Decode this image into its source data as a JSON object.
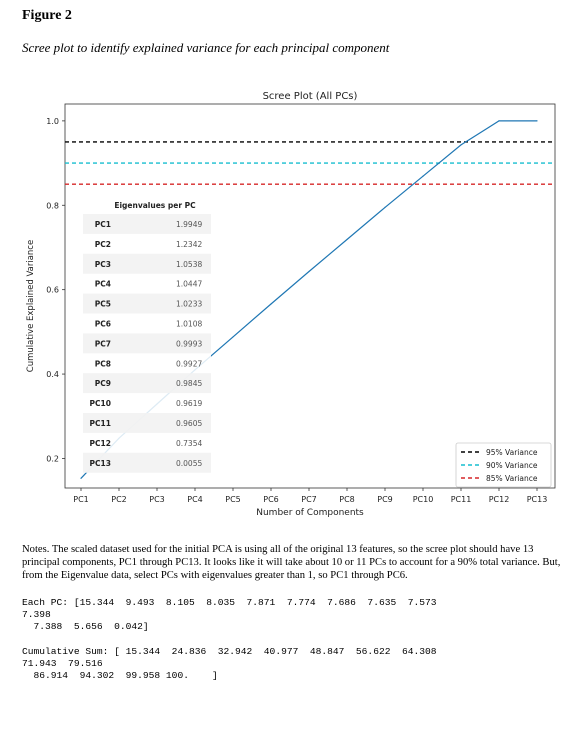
{
  "figure": {
    "label": "Figure 2",
    "caption": "Scree plot to identify explained variance for each principal component"
  },
  "chart_data": {
    "type": "line",
    "title": "Scree Plot (All PCs)",
    "xlabel": "Number of Components",
    "ylabel": "Cumulative Explained Variance",
    "categories": [
      "PC1",
      "PC2",
      "PC3",
      "PC4",
      "PC5",
      "PC6",
      "PC7",
      "PC8",
      "PC9",
      "PC10",
      "PC11",
      "PC12",
      "PC13"
    ],
    "y_ticks": [
      "0.2",
      "0.4",
      "0.6",
      "0.8",
      "1.0"
    ],
    "ylim": [
      0.13,
      1.04
    ],
    "series": [
      {
        "values": [
          0.153,
          0.248,
          0.329,
          0.41,
          0.488,
          0.566,
          0.643,
          0.719,
          0.795,
          0.869,
          0.943,
          1.0,
          1.0
        ],
        "color": "#1f77b4"
      }
    ],
    "hlines": [
      {
        "y": 0.95,
        "label": "95% Variance",
        "color": "#000000"
      },
      {
        "y": 0.9,
        "label": "90% Variance",
        "color": "#17becf"
      },
      {
        "y": 0.85,
        "label": "85% Variance",
        "color": "#d62728"
      }
    ],
    "legend_position": "bottom-right",
    "grid": false,
    "inset_table": {
      "header": "Eigenvalues per PC",
      "rows": [
        [
          "PC1",
          "1.9949"
        ],
        [
          "PC2",
          "1.2342"
        ],
        [
          "PC3",
          "1.0538"
        ],
        [
          "PC4",
          "1.0447"
        ],
        [
          "PC5",
          "1.0233"
        ],
        [
          "PC6",
          "1.0108"
        ],
        [
          "PC7",
          "0.9993"
        ],
        [
          "PC8",
          "0.9927"
        ],
        [
          "PC9",
          "0.9845"
        ],
        [
          "PC10",
          "0.9619"
        ],
        [
          "PC11",
          "0.9605"
        ],
        [
          "PC12",
          "0.7354"
        ],
        [
          "PC13",
          "0.0055"
        ]
      ]
    }
  },
  "notes": "Notes. The scaled dataset used for the initial PCA is using all of the original 13 features, so the scree plot should have 13 principal components, PC1 through PC13. It looks like it will take about 10 or 11 PCs to account for a 90% total variance. But, from the Eigenvalue data, select PCs with eigenvalues greater than 1, so PC1 through PC6.",
  "output_each": "Each PC: [15.344  9.493  8.105  8.035  7.871  7.774  7.686  7.635  7.573\n7.398\n  7.388  5.656  0.042]",
  "output_cum": "Cumulative Sum: [ 15.344  24.836  32.942  40.977  48.847  56.622  64.308\n71.943  79.516\n  86.914  94.302  99.958 100.    ]"
}
